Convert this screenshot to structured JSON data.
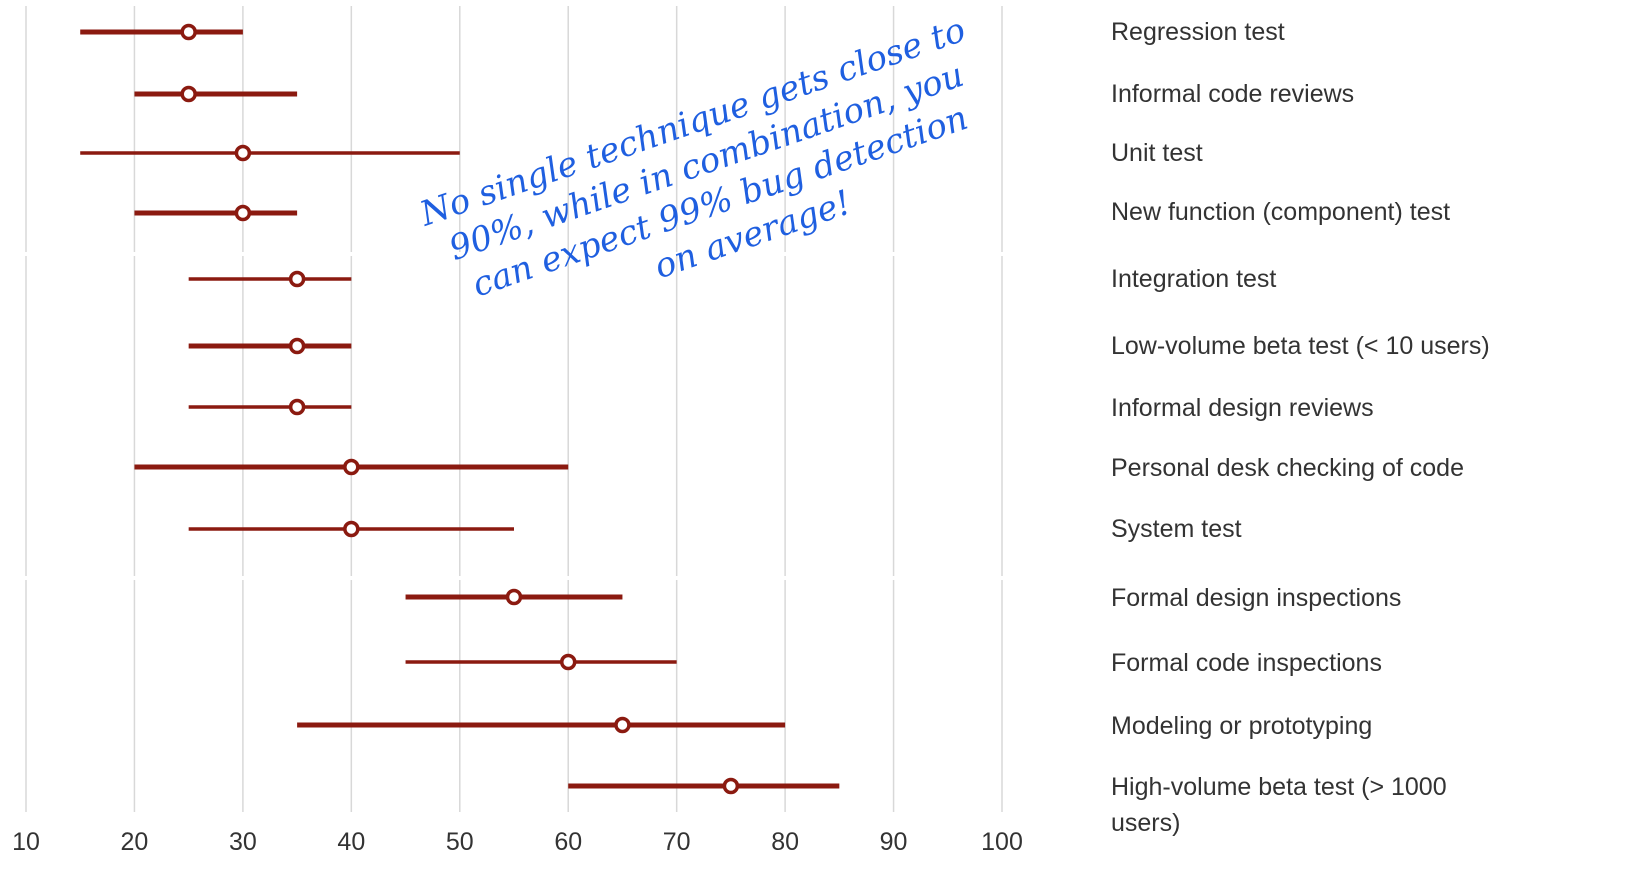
{
  "chart_data": {
    "type": "range",
    "title": "",
    "xlabel": "",
    "ylabel": "",
    "xlim": [
      10,
      100
    ],
    "xticks": [
      10,
      20,
      30,
      40,
      50,
      60,
      70,
      80,
      90,
      100
    ],
    "grid": true,
    "colors": {
      "series": "#8b1a10",
      "grid": "#d8d8d8",
      "annotation": "#1f5fe0"
    },
    "groups": [
      0,
      0,
      0,
      0,
      1,
      1,
      1,
      1,
      1,
      2,
      2,
      2,
      2
    ],
    "items": [
      {
        "label": "Regression test",
        "low": 15,
        "mode": 25,
        "high": 30,
        "thick": true
      },
      {
        "label": "Informal code reviews",
        "low": 20,
        "mode": 25,
        "high": 35,
        "thick": true
      },
      {
        "label": "Unit test",
        "low": 15,
        "mode": 30,
        "high": 50,
        "thick": false
      },
      {
        "label": "New function (component) test",
        "low": 20,
        "mode": 30,
        "high": 35,
        "thick": true
      },
      {
        "label": "Integration test",
        "low": 25,
        "mode": 35,
        "high": 40,
        "thick": false
      },
      {
        "label": "Low-volume beta test (< 10 users)",
        "low": 25,
        "mode": 35,
        "high": 40,
        "thick": true
      },
      {
        "label": "Informal design reviews",
        "low": 25,
        "mode": 35,
        "high": 40,
        "thick": false
      },
      {
        "label": "Personal desk checking of code",
        "low": 20,
        "mode": 40,
        "high": 60,
        "thick": true
      },
      {
        "label": "System test",
        "low": 25,
        "mode": 40,
        "high": 55,
        "thick": false
      },
      {
        "label": "Formal design inspections",
        "low": 45,
        "mode": 55,
        "high": 65,
        "thick": true
      },
      {
        "label": "Formal code inspections",
        "low": 45,
        "mode": 60,
        "high": 70,
        "thick": false
      },
      {
        "label": "Modeling or prototyping",
        "low": 35,
        "mode": 65,
        "high": 80,
        "thick": true
      },
      {
        "label": "High-volume beta test (> 1000 users)",
        "label_lines": [
          "High-volume beta test (> 1000",
          "users)"
        ],
        "low": 60,
        "mode": 75,
        "high": 85,
        "thick": true
      }
    ],
    "annotation": {
      "lines": [
        "No single technique gets close to",
        "90%, while in combination, you",
        "can expect 99% bug detection",
        "on average!"
      ]
    }
  }
}
